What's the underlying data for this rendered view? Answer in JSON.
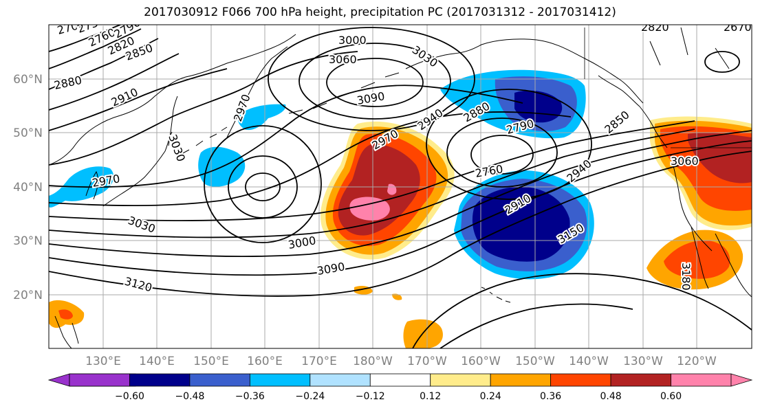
{
  "title": "2017030912 F066 700 hPa height, precipitation PC (2017031312 - 2017031412)",
  "lat_labels": [
    "60°N",
    "50°N",
    "40°N",
    "30°N",
    "20°N"
  ],
  "lon_labels": [
    "130°E",
    "140°E",
    "150°E",
    "160°E",
    "170°E",
    "180°W",
    "170°W",
    "160°W",
    "150°W",
    "140°W",
    "130°W",
    "120°W"
  ],
  "colorbar": {
    "colors": [
      "#9932cc",
      "#00008b",
      "#3a5fcd",
      "#00bfff",
      "#b0e2ff",
      "#ffffff",
      "#ffec8b",
      "#ffa500",
      "#ff4500",
      "#b22222",
      "#ff82ab",
      "#ff82ab"
    ],
    "tick_labels": [
      "−0.60",
      "−0.48",
      "−0.36",
      "−0.24",
      "−0.12",
      "0.12",
      "0.24",
      "0.36",
      "0.48",
      "0.60"
    ]
  },
  "contour_labels": [
    "2700",
    "2730",
    "2760",
    "2790",
    "2820",
    "2850",
    "2880",
    "2910",
    "2970",
    "3030",
    "3000",
    "3060",
    "3030",
    "3090",
    "2940",
    "2880",
    "2790",
    "2850",
    "2970",
    "2760",
    "2910",
    "2940",
    "3150",
    "3060",
    "3000",
    "3090",
    "3120",
    "3180",
    "2970",
    "3030",
    "2820",
    "2670",
    "2910",
    "2790",
    "2880"
  ],
  "colors": {
    "contour": "#000000",
    "grid": "#aaaaaa",
    "coast": "#000000",
    "axis_label": "#808080"
  }
}
